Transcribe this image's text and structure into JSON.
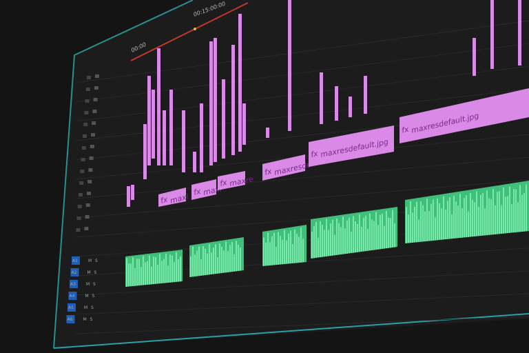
{
  "timeline": {
    "timecode": "00:15:00:00",
    "start_timecode": "00:00"
  },
  "video_clips": [
    {
      "label": "maxi",
      "icon": "fx-icon"
    },
    {
      "label": "maxi",
      "icon": "fx-icon"
    },
    {
      "label": "maxre",
      "icon": "fx-icon"
    },
    {
      "label": "maxresde",
      "icon": "fx-icon"
    },
    {
      "label": "maxresdefault.jpg",
      "icon": "fx-icon"
    },
    {
      "label": "maxresdefault.jpg",
      "icon": "fx-icon"
    }
  ],
  "fx_label": "fx",
  "audio_tracks": [
    {
      "name": "A1",
      "m": "M",
      "s": "S"
    },
    {
      "name": "A2",
      "m": "M",
      "s": "S"
    },
    {
      "name": "A3",
      "m": "M",
      "s": "S"
    },
    {
      "name": "A4",
      "m": "M",
      "s": "S"
    },
    {
      "name": "A5",
      "m": "M",
      "s": "S"
    },
    {
      "name": "A6",
      "m": "M",
      "s": "S"
    }
  ],
  "colors": {
    "video_clip": "#d98ae6",
    "audio_clip": "#5fe39a",
    "playhead_line": "#c0392b",
    "track_highlight": "#1f5fb8",
    "panel_border": "#2a8f8f"
  }
}
